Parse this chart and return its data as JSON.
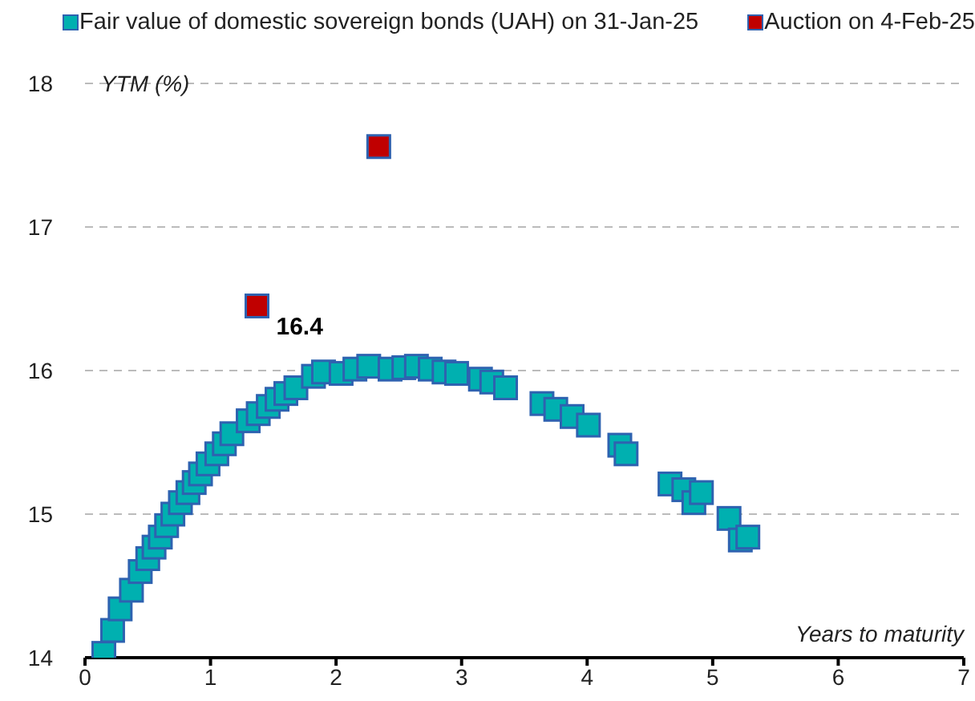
{
  "chart_data": {
    "type": "scatter",
    "xlabel": "Years to maturity",
    "ylabel": "YTM (%)",
    "xlim": [
      0,
      7
    ],
    "xticks": [
      0,
      1,
      2,
      3,
      4,
      5,
      6,
      7
    ],
    "ylim": [
      14,
      18
    ],
    "yticks": [
      14,
      15,
      16,
      17,
      18
    ],
    "grid": "y",
    "legend": "top",
    "marker": "square",
    "series": [
      {
        "name": "Fair value of domestic sovereign bonds (UAH) on 31-Jan-25",
        "color": "#00b0b0",
        "x": [
          0.15,
          0.22,
          0.28,
          0.37,
          0.44,
          0.5,
          0.55,
          0.6,
          0.65,
          0.7,
          0.76,
          0.82,
          0.87,
          0.92,
          0.98,
          1.05,
          1.11,
          1.17,
          1.3,
          1.38,
          1.46,
          1.53,
          1.6,
          1.68,
          1.82,
          1.9,
          2.04,
          2.15,
          2.26,
          2.43,
          2.54,
          2.64,
          2.75,
          2.86,
          2.96,
          3.15,
          3.24,
          3.35,
          3.64,
          3.75,
          3.88,
          4.01,
          4.26,
          4.31,
          4.66,
          4.77,
          4.85,
          4.91,
          5.13,
          5.22,
          5.28
        ],
        "values": [
          14.03,
          14.19,
          14.34,
          14.47,
          14.6,
          14.69,
          14.77,
          14.84,
          14.92,
          15.0,
          15.08,
          15.15,
          15.22,
          15.28,
          15.35,
          15.42,
          15.49,
          15.56,
          15.65,
          15.7,
          15.75,
          15.8,
          15.84,
          15.88,
          15.96,
          15.99,
          15.98,
          16.01,
          16.03,
          16.01,
          16.02,
          16.03,
          16.01,
          15.99,
          15.98,
          15.94,
          15.92,
          15.88,
          15.77,
          15.73,
          15.68,
          15.62,
          15.48,
          15.42,
          15.21,
          15.17,
          15.08,
          15.15,
          14.97,
          14.82,
          14.84
        ]
      },
      {
        "name": "Auction on 4-Feb-25",
        "color": "#c00000",
        "x": [
          1.37,
          2.34
        ],
        "values": [
          16.45,
          17.56
        ],
        "value_labels": [
          "16.4",
          null
        ]
      }
    ]
  }
}
